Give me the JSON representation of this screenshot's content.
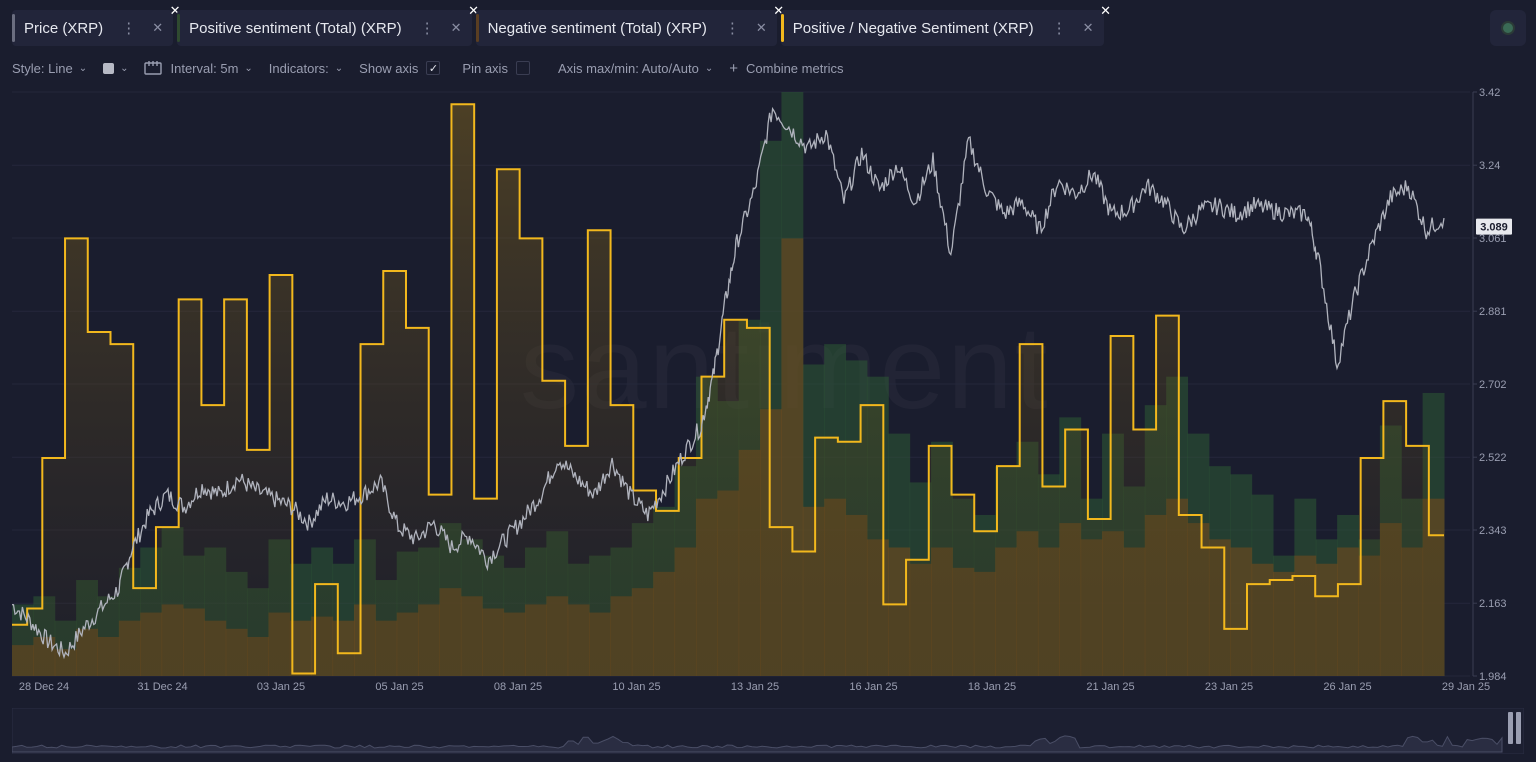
{
  "tabs": [
    {
      "label": "Price (XRP)",
      "color": "#6b6e80"
    },
    {
      "label": "Positive sentiment (Total) (XRP)",
      "color": "#2f4a30"
    },
    {
      "label": "Negative sentiment (Total) (XRP)",
      "color": "#5a3e22"
    },
    {
      "label": "Positive / Negative Sentiment (XRP)",
      "color": "#f2b81d"
    }
  ],
  "toolbar": {
    "style": "Style: Line",
    "interval": "Interval: 5m",
    "indicators": "Indicators:",
    "show_axis": "Show axis",
    "pin_axis": "Pin axis",
    "axis_maxmin": "Axis max/min: Auto/Auto",
    "combine": "Combine metrics"
  },
  "icons": [
    "more-vertical-icon",
    "close-icon",
    "chevron-down-icon",
    "calendar-icon",
    "checkmark-icon",
    "plus-icon"
  ],
  "watermark": "santiment",
  "colors": {
    "background": "#1a1d2e",
    "price": "#b0b3bd",
    "ratio": "#f2b81d",
    "positive": "#2e5a34",
    "negative": "#7a4a1c",
    "axis_label": "#9a9eb1",
    "price_badge": "#e8e9ee"
  },
  "chart_data": {
    "type": "line",
    "x_labels": [
      "28 Dec 24",
      "31 Dec 24",
      "03 Jan 25",
      "05 Jan 25",
      "08 Jan 25",
      "10 Jan 25",
      "13 Jan 25",
      "16 Jan 25",
      "18 Jan 25",
      "21 Jan 25",
      "23 Jan 25",
      "26 Jan 25",
      "29 Jan 25"
    ],
    "y_ticks": [
      "3.42",
      "3.24",
      "3.061",
      "2.881",
      "2.702",
      "2.522",
      "2.343",
      "2.163",
      "1.984"
    ],
    "ylim": [
      1.984,
      3.42
    ],
    "current_price": "3.089",
    "price_series": {
      "name": "Price (XRP)",
      "points": [
        [
          0,
          2.16
        ],
        [
          3,
          2.12
        ],
        [
          6,
          2.07
        ],
        [
          9,
          2.04
        ],
        [
          12,
          2.1
        ],
        [
          15,
          2.15
        ],
        [
          18,
          2.2
        ],
        [
          20,
          2.29
        ],
        [
          23,
          2.38
        ],
        [
          26,
          2.43
        ],
        [
          29,
          2.4
        ],
        [
          32,
          2.45
        ],
        [
          35,
          2.43
        ],
        [
          38,
          2.47
        ],
        [
          41,
          2.44
        ],
        [
          44,
          2.42
        ],
        [
          47,
          2.4
        ],
        [
          50,
          2.36
        ],
        [
          53,
          2.42
        ],
        [
          56,
          2.41
        ],
        [
          59,
          2.43
        ],
        [
          62,
          2.46
        ],
        [
          65,
          2.35
        ],
        [
          68,
          2.32
        ],
        [
          71,
          2.36
        ],
        [
          74,
          2.3
        ],
        [
          77,
          2.33
        ],
        [
          80,
          2.27
        ],
        [
          83,
          2.32
        ],
        [
          86,
          2.37
        ],
        [
          89,
          2.43
        ],
        [
          92,
          2.52
        ],
        [
          95,
          2.47
        ],
        [
          98,
          2.43
        ],
        [
          101,
          2.51
        ],
        [
          104,
          2.43
        ],
        [
          107,
          2.38
        ],
        [
          110,
          2.45
        ],
        [
          113,
          2.53
        ],
        [
          116,
          2.6
        ],
        [
          118,
          2.72
        ],
        [
          120,
          2.9
        ],
        [
          122,
          3.05
        ],
        [
          125,
          3.18
        ],
        [
          128,
          3.38
        ],
        [
          131,
          3.33
        ],
        [
          134,
          3.28
        ],
        [
          137,
          3.32
        ],
        [
          140,
          3.15
        ],
        [
          143,
          3.27
        ],
        [
          146,
          3.18
        ],
        [
          149,
          3.24
        ],
        [
          152,
          3.15
        ],
        [
          155,
          3.25
        ],
        [
          158,
          3.02
        ],
        [
          161,
          3.3
        ],
        [
          164,
          3.18
        ],
        [
          167,
          3.12
        ],
        [
          170,
          3.15
        ],
        [
          173,
          3.08
        ],
        [
          176,
          3.2
        ],
        [
          179,
          3.17
        ],
        [
          182,
          3.22
        ],
        [
          185,
          3.12
        ],
        [
          188,
          3.13
        ],
        [
          191,
          3.19
        ],
        [
          194,
          3.15
        ],
        [
          197,
          3.08
        ],
        [
          200,
          3.13
        ],
        [
          203,
          3.14
        ],
        [
          206,
          3.12
        ],
        [
          209,
          3.14
        ],
        [
          212,
          3.13
        ],
        [
          215,
          3.12
        ],
        [
          218,
          3.12
        ],
        [
          220,
          3.0
        ],
        [
          223,
          2.75
        ],
        [
          226,
          2.92
        ],
        [
          229,
          3.05
        ],
        [
          232,
          3.16
        ],
        [
          235,
          3.19
        ],
        [
          238,
          3.08
        ],
        [
          241,
          3.11
        ]
      ]
    },
    "ratio_series": {
      "name": "Positive / Negative Sentiment (XRP)",
      "points": [
        [
          0,
          2.11
        ],
        [
          2,
          2.15
        ],
        [
          4,
          2.52
        ],
        [
          7,
          3.06
        ],
        [
          10,
          2.83
        ],
        [
          13,
          2.8
        ],
        [
          16,
          2.2
        ],
        [
          19,
          2.35
        ],
        [
          22,
          2.91
        ],
        [
          25,
          2.65
        ],
        [
          28,
          2.91
        ],
        [
          31,
          2.54
        ],
        [
          34,
          2.97
        ],
        [
          37,
          1.99
        ],
        [
          40,
          2.21
        ],
        [
          43,
          2.04
        ],
        [
          46,
          2.8
        ],
        [
          49,
          2.98
        ],
        [
          52,
          2.84
        ],
        [
          55,
          2.43
        ],
        [
          58,
          3.39
        ],
        [
          61,
          2.42
        ],
        [
          64,
          3.23
        ],
        [
          67,
          3.06
        ],
        [
          70,
          2.71
        ],
        [
          73,
          2.55
        ],
        [
          76,
          3.08
        ],
        [
          79,
          2.65
        ],
        [
          82,
          2.44
        ],
        [
          85,
          2.39
        ],
        [
          88,
          2.52
        ],
        [
          91,
          2.72
        ],
        [
          94,
          2.86
        ],
        [
          97,
          2.84
        ],
        [
          100,
          2.35
        ],
        [
          103,
          2.29
        ],
        [
          106,
          2.57
        ],
        [
          109,
          2.56
        ],
        [
          112,
          2.65
        ],
        [
          115,
          2.16
        ],
        [
          118,
          2.27
        ],
        [
          121,
          2.55
        ],
        [
          124,
          2.43
        ],
        [
          127,
          2.34
        ],
        [
          130,
          2.5
        ],
        [
          133,
          2.8
        ],
        [
          136,
          2.45
        ],
        [
          139,
          2.59
        ],
        [
          142,
          2.37
        ],
        [
          145,
          2.82
        ],
        [
          148,
          2.59
        ],
        [
          151,
          2.87
        ],
        [
          154,
          2.38
        ],
        [
          157,
          2.3
        ],
        [
          160,
          2.1
        ],
        [
          163,
          2.21
        ],
        [
          166,
          2.22
        ],
        [
          169,
          2.23
        ],
        [
          172,
          2.18
        ],
        [
          175,
          2.21
        ],
        [
          178,
          2.52
        ],
        [
          181,
          2.66
        ],
        [
          184,
          2.55
        ],
        [
          187,
          2.33
        ],
        [
          189,
          2.33
        ]
      ]
    },
    "positive_series": {
      "name": "Positive sentiment (Total) (XRP)",
      "values": [
        2.16,
        2.18,
        2.12,
        2.22,
        2.18,
        2.25,
        2.3,
        2.35,
        2.28,
        2.3,
        2.24,
        2.2,
        2.32,
        2.26,
        2.3,
        2.26,
        2.32,
        2.22,
        2.29,
        2.3,
        2.36,
        2.32,
        2.28,
        2.25,
        2.3,
        2.34,
        2.26,
        2.28,
        2.3,
        2.36,
        2.4,
        2.5,
        2.72,
        2.66,
        2.86,
        3.3,
        3.42,
        2.75,
        2.8,
        2.76,
        2.72,
        2.58,
        2.46,
        2.56,
        2.42,
        2.38,
        2.5,
        2.56,
        2.48,
        2.62,
        2.42,
        2.58,
        2.45,
        2.65,
        2.72,
        2.58,
        2.5,
        2.48,
        2.43,
        2.28,
        2.42,
        2.32,
        2.38,
        2.32,
        2.6,
        2.42,
        2.68
      ]
    },
    "negative_series": {
      "name": "Negative sentiment (Total) (XRP)",
      "values": [
        2.06,
        2.08,
        2.05,
        2.1,
        2.08,
        2.12,
        2.14,
        2.16,
        2.15,
        2.12,
        2.1,
        2.08,
        2.14,
        2.12,
        2.13,
        2.12,
        2.16,
        2.12,
        2.14,
        2.16,
        2.2,
        2.18,
        2.15,
        2.14,
        2.16,
        2.18,
        2.16,
        2.14,
        2.18,
        2.2,
        2.24,
        2.3,
        2.42,
        2.44,
        2.54,
        2.64,
        3.06,
        2.4,
        2.42,
        2.38,
        2.32,
        2.3,
        2.26,
        2.3,
        2.25,
        2.24,
        2.3,
        2.34,
        2.3,
        2.36,
        2.32,
        2.34,
        2.3,
        2.38,
        2.42,
        2.36,
        2.32,
        2.3,
        2.26,
        2.24,
        2.28,
        2.26,
        2.3,
        2.28,
        2.36,
        2.3,
        2.42
      ]
    }
  }
}
